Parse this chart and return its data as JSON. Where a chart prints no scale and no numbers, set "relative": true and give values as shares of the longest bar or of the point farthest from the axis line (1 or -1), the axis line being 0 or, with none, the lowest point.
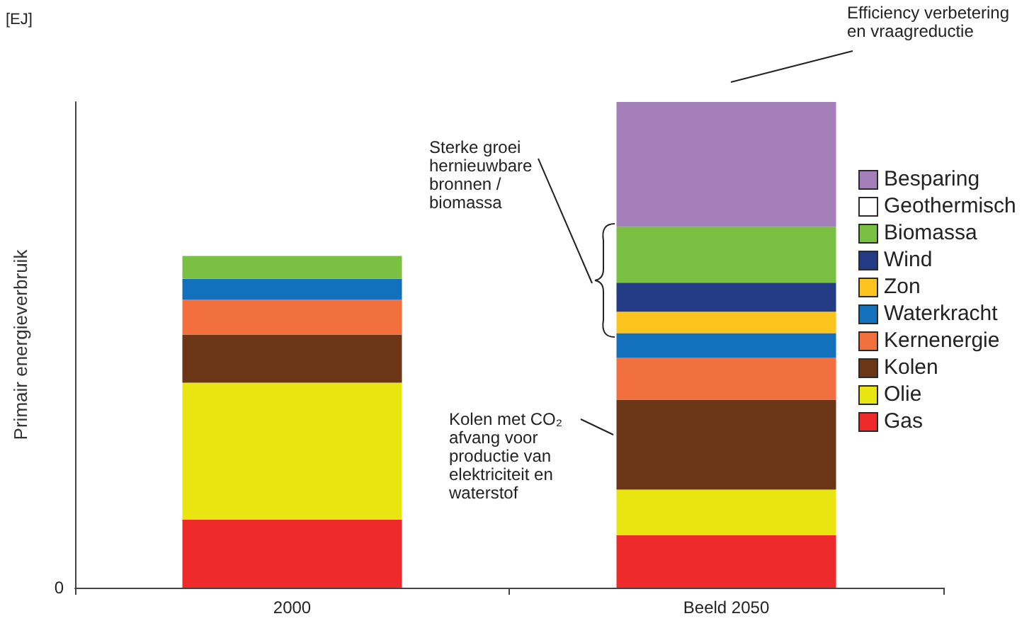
{
  "chart_data": {
    "type": "bar",
    "relative": true,
    "stacked": true,
    "ylabel": "Primair energieverbruik",
    "categories": [
      "2000",
      "Beeld 2050"
    ],
    "series": [
      {
        "name": "Gas",
        "color": "#ee2a2a",
        "values": [
          0.14,
          0.108
        ]
      },
      {
        "name": "Olie",
        "color": "#e9e511",
        "values": [
          0.282,
          0.094
        ]
      },
      {
        "name": "Kolen",
        "color": "#6b3616",
        "values": [
          0.099,
          0.185
        ]
      },
      {
        "name": "Kernenergie",
        "color": "#f2703d",
        "values": [
          0.072,
          0.086
        ]
      },
      {
        "name": "Waterkracht",
        "color": "#1270bd",
        "values": [
          0.043,
          0.051
        ]
      },
      {
        "name": "Zon",
        "color": "#fdc31f",
        "values": [
          null,
          0.044
        ]
      },
      {
        "name": "Wind",
        "color": "#233a85",
        "values": [
          null,
          0.06
        ]
      },
      {
        "name": "Biomassa",
        "color": "#7ac143",
        "values": [
          0.047,
          0.115
        ]
      },
      {
        "name": "Geothermisch",
        "color": "#ffffff",
        "values": [
          null,
          null
        ]
      },
      {
        "name": "Besparing",
        "color": "#a57fba",
        "values": [
          null,
          0.257
        ]
      }
    ],
    "annotations": [
      "[EJ]",
      "0",
      "Efficiency verbetering en vraagreductie",
      "Sterke groei hernieuwbare bronnen / biomassa",
      "Kolen met CO₂ afvang voor productie van elektriciteit en waterstof"
    ],
    "legend": "right",
    "grid": false
  }
}
